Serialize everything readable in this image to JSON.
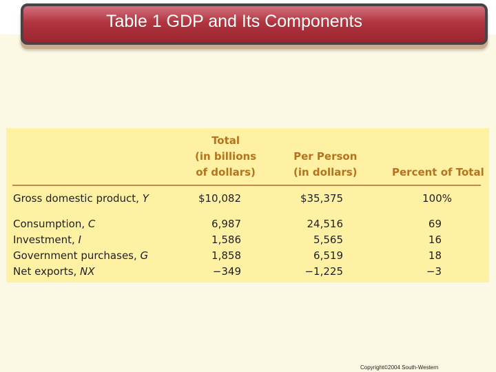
{
  "slide": {
    "title": "Table 1 GDP and Its Components",
    "copyright": "Copyright©2004  South-Western"
  },
  "table": {
    "headers": {
      "total": [
        "Total",
        "(in billions",
        "of dollars)"
      ],
      "per_person": [
        "Per Person",
        "(in dollars)"
      ],
      "percent": "Percent of Total"
    },
    "rows": [
      {
        "label": "Gross domestic product, ",
        "var": "Y",
        "total": "$10,082",
        "per_person": "$35,375",
        "percent": "100%"
      },
      {
        "label": "Consumption, ",
        "var": "C",
        "total": "6,987",
        "per_person": "24,516",
        "percent": "69"
      },
      {
        "label": "Investment, ",
        "var": "I",
        "total": "1,586",
        "per_person": "5,565",
        "percent": "16"
      },
      {
        "label": "Government purchases, ",
        "var": "G",
        "total": "1,858",
        "per_person": "6,519",
        "percent": "18"
      },
      {
        "label": "Net exports, ",
        "var": "NX",
        "total": "−349",
        "per_person": "−1,225",
        "percent": "−3"
      }
    ]
  },
  "colors": {
    "banner": "#b0353f",
    "panel": "#fff1a4",
    "header_text": "#b4731e",
    "background": "#fbf8e4"
  }
}
